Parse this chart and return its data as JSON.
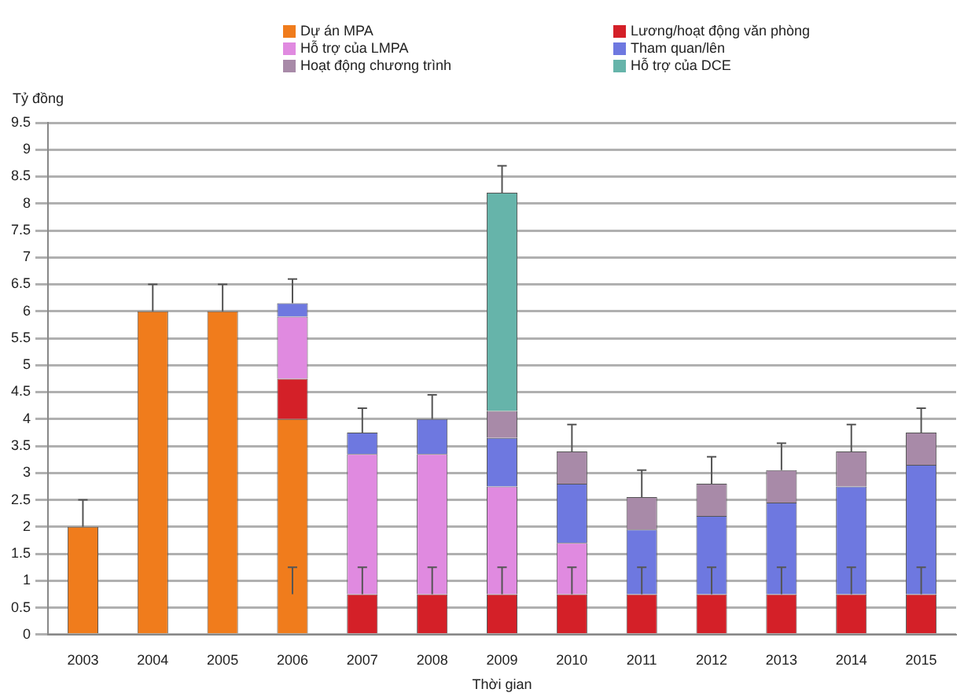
{
  "chart_data": {
    "type": "bar",
    "stacked": true,
    "xlabel": "Thời gian",
    "ylabel": "Tỷ đồng",
    "legend": "top",
    "grid": "y",
    "categories": [
      "2003",
      "2004",
      "2005",
      "2006",
      "2007",
      "2008",
      "2009",
      "2010",
      "2011",
      "2012",
      "2013",
      "2014",
      "2015"
    ],
    "ylim": [
      0,
      9.5
    ],
    "yticks": [
      0,
      {
        "value": 0.5,
        "label": "0.5"
      },
      1,
      {
        "value": 1.5,
        "label": "1.5"
      },
      2,
      {
        "value": 2.5,
        "label": "2.5"
      },
      3,
      {
        "value": 3.5,
        "label": "3.5"
      },
      4,
      {
        "value": 4.5,
        "label": "4.5"
      },
      5,
      {
        "value": 5.5,
        "label": "5.5"
      },
      6,
      {
        "value": 6.5,
        "label": "6.5"
      },
      7,
      {
        "value": 7.5,
        "label": "7.5"
      },
      8,
      {
        "value": 8.5,
        "label": "8.5"
      },
      9,
      {
        "value": 9.5,
        "label": "9.5"
      }
    ],
    "series": [
      {
        "name": "Dự án MPA",
        "color": "#f07c1c",
        "values": [
          2,
          6,
          6,
          4,
          null,
          null,
          null,
          null,
          null,
          null,
          null,
          null,
          null
        ],
        "errors": [
          [
            2,
            2.5
          ],
          [
            6,
            6.5
          ],
          [
            6,
            6.5
          ],
          null,
          null,
          null,
          null,
          null,
          null,
          null,
          null,
          null,
          null
        ]
      },
      {
        "name": "Lương/hoạt động văn phòng",
        "color": "#d42028",
        "values": [
          null,
          null,
          null,
          0.75,
          0.75,
          0.75,
          0.75,
          0.75,
          0.75,
          0.75,
          0.75,
          0.75,
          0.75
        ],
        "errors": [
          null,
          null,
          null,
          [
            0.75,
            1.25
          ],
          [
            0.75,
            1.25
          ],
          [
            0.75,
            1.25
          ],
          [
            0.75,
            1.25
          ],
          [
            0.75,
            1.25
          ],
          [
            0.75,
            1.25
          ],
          [
            0.75,
            1.25
          ],
          [
            0.75,
            1.25
          ],
          [
            0.75,
            1.25
          ],
          [
            0.75,
            1.25
          ]
        ]
      },
      {
        "name": "Hỗ trợ của LMPA",
        "color": "#e08ae0",
        "values": [
          null,
          null,
          null,
          1.15,
          2.6,
          2.6,
          2,
          0.95,
          null,
          null,
          null,
          null,
          null
        ]
      },
      {
        "name": "Tham quan/lên",
        "color": "#6e78e0",
        "values": [
          null,
          null,
          null,
          0.25,
          0.4,
          0.65,
          0.9,
          1.1,
          1.2,
          1.45,
          1.7,
          2,
          2.4
        ],
        "errors": [
          null,
          null,
          null,
          [
            6.15,
            6.6
          ],
          [
            3.75,
            4.2
          ],
          [
            4,
            4.45
          ],
          null,
          null,
          null,
          null,
          null,
          null,
          null
        ]
      },
      {
        "name": "Hoạt động chương trình",
        "color": "#a88aa8",
        "values": [
          null,
          null,
          null,
          null,
          null,
          null,
          0.5,
          0.6,
          0.6,
          0.6,
          0.6,
          0.65,
          0.6
        ],
        "errors": [
          null,
          null,
          null,
          null,
          null,
          null,
          null,
          [
            3.4,
            3.9
          ],
          [
            2.55,
            3.05
          ],
          [
            2.8,
            3.3
          ],
          [
            3.05,
            3.55
          ],
          [
            3.4,
            3.9
          ],
          [
            3.75,
            4.2
          ]
        ]
      },
      {
        "name": "Hỗ trợ của DCE",
        "color": "#66b4aa",
        "values": [
          null,
          null,
          null,
          null,
          null,
          null,
          4.05,
          null,
          null,
          null,
          null,
          null,
          null
        ],
        "errors": [
          null,
          null,
          null,
          null,
          null,
          null,
          [
            8.2,
            8.7
          ],
          null,
          null,
          null,
          null,
          null,
          null
        ]
      }
    ]
  }
}
